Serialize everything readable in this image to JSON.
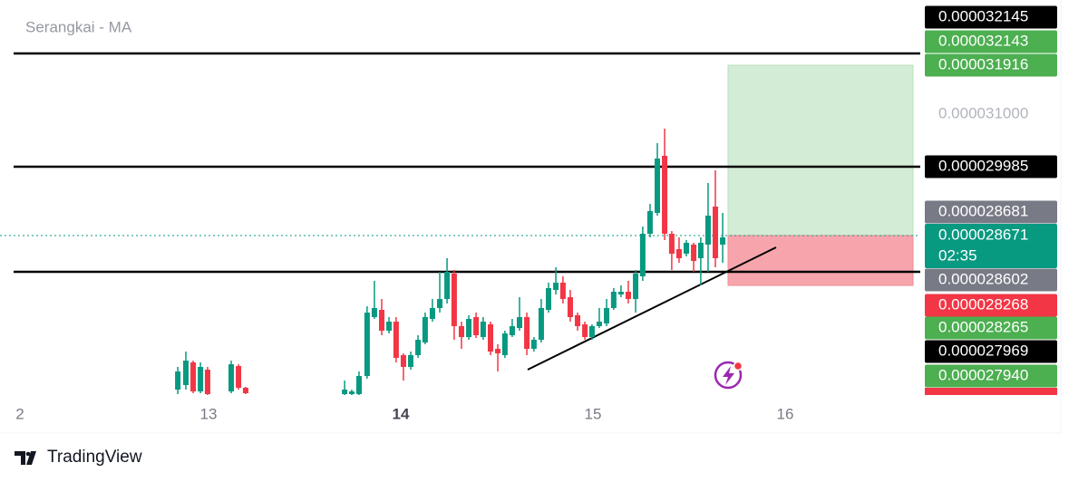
{
  "chart_data": {
    "type": "candlestick",
    "title": "Serangkai - MA",
    "brand": "TradingView",
    "up_color": "#089981",
    "down_color": "#f23645",
    "x": [
      12.84,
      12.882,
      12.92,
      12.958,
      12.995,
      13.118,
      13.156,
      13.193,
      13.708,
      13.745,
      13.783,
      13.825,
      13.863,
      13.901,
      13.939,
      13.976,
      14.014,
      14.052,
      14.09,
      14.127,
      14.165,
      14.203,
      14.241,
      14.278,
      14.316,
      14.354,
      14.392,
      14.429,
      14.467,
      14.505,
      14.542,
      14.58,
      14.618,
      14.656,
      14.693,
      14.731,
      14.769,
      14.807,
      14.844,
      14.882,
      14.92,
      14.958,
      14.995,
      15.033,
      15.071,
      15.108,
      15.146,
      15.184,
      15.222,
      15.259,
      15.297,
      15.335,
      15.373,
      15.41,
      15.448,
      15.486,
      15.524,
      15.561,
      15.599,
      15.637,
      15.675
    ],
    "open": [
      2.7042e-05,
      2.7102e-05,
      2.7402e-05,
      2.7018e-05,
      2.7306e-05,
      2.7018e-05,
      2.7354e-05,
      2.7066e-05,
      2.6982e-05,
      2.6982e-05,
      2.6982e-05,
      2.7222e-05,
      2.8002e-05,
      2.8098e-05,
      2.7822e-05,
      2.7942e-05,
      2.7498e-05,
      2.7342e-05,
      2.7498e-05,
      2.7666e-05,
      2.7978e-05,
      2.8122e-05,
      2.8242e-05,
      2.8578e-05,
      2.7882e-05,
      2.7738e-05,
      2.8002e-05,
      2.7738e-05,
      2.7906e-05,
      2.7582e-05,
      2.7498e-05,
      2.7762e-05,
      2.7858e-05,
      2.8002e-05,
      2.7582e-05,
      2.7702e-05,
      2.8098e-05,
      2.8362e-05,
      2.8458e-05,
      2.8266e-05,
      2.8026e-05,
      2.7906e-05,
      2.7738e-05,
      2.7882e-05,
      2.7918e-05,
      2.8122e-05,
      2.8302e-05,
      2.8338e-05,
      2.8242e-05,
      2.8542e-05,
      2.9106e-05,
      2.9382e-05,
      3.0138e-05,
      2.9106e-05,
      2.8902e-05,
      2.8842e-05,
      2.8962e-05,
      2.8782e-05,
      2.8962e-05,
      2.9466e-05,
      2.8962e-05
    ],
    "high": [
      2.7342e-05,
      2.7546e-05,
      2.7426e-05,
      2.7402e-05,
      2.7342e-05,
      2.7426e-05,
      2.7378e-05,
      2.7078e-05,
      2.7162e-05,
      2.7042e-05,
      2.7282e-05,
      2.8146e-05,
      2.8482e-05,
      2.8242e-05,
      2.8002e-05,
      2.8002e-05,
      2.7522e-05,
      2.7546e-05,
      2.7762e-05,
      2.8062e-05,
      2.8242e-05,
      2.8602e-05,
      2.8782e-05,
      2.8626e-05,
      2.7942e-05,
      2.8026e-05,
      2.8062e-05,
      2.8002e-05,
      2.7942e-05,
      2.7642e-05,
      2.7822e-05,
      2.7978e-05,
      2.8266e-05,
      2.8062e-05,
      2.7738e-05,
      2.8242e-05,
      2.8458e-05,
      2.8662e-05,
      2.8542e-05,
      2.8362e-05,
      2.8062e-05,
      2.7942e-05,
      2.7906e-05,
      2.8122e-05,
      2.8242e-05,
      2.8386e-05,
      2.8422e-05,
      2.8482e-05,
      2.8626e-05,
      2.9202e-05,
      2.9502e-05,
      3.0306e-05,
      3.0498e-05,
      2.9142e-05,
      2.9058e-05,
      2.9022e-05,
      2.8986e-05,
      2.9058e-05,
      2.9778e-05,
      2.9946e-05,
      2.9382e-05
    ],
    "low": [
      2.6982e-05,
      2.7042e-05,
      2.6994e-05,
      2.6994e-05,
      2.697e-05,
      2.6994e-05,
      2.7042e-05,
      2.6982e-05,
      2.697e-05,
      2.697e-05,
      2.697e-05,
      2.7186e-05,
      2.7978e-05,
      2.7762e-05,
      2.7786e-05,
      2.7402e-05,
      2.7162e-05,
      2.7306e-05,
      2.7462e-05,
      2.7642e-05,
      2.7942e-05,
      2.8062e-05,
      2.8182e-05,
      2.7702e-05,
      2.7582e-05,
      2.7702e-05,
      2.7726e-05,
      2.7702e-05,
      2.7498e-05,
      2.7282e-05,
      2.7462e-05,
      2.7738e-05,
      2.7822e-05,
      2.7498e-05,
      2.7546e-05,
      2.7666e-05,
      2.8062e-05,
      2.8302e-05,
      2.8182e-05,
      2.7942e-05,
      2.7822e-05,
      2.7702e-05,
      2.7702e-05,
      2.7858e-05,
      2.7882e-05,
      2.8098e-05,
      2.8266e-05,
      2.8182e-05,
      2.8062e-05,
      2.8482e-05,
      2.9058e-05,
      2.9346e-05,
      2.9022e-05,
      2.8626e-05,
      2.8722e-05,
      2.8806e-05,
      2.8602e-05,
      2.8422e-05,
      2.8602e-05,
      2.8662e-05,
      2.8722e-05
    ],
    "close": [
      2.7282e-05,
      2.7426e-05,
      2.7018e-05,
      2.7342e-05,
      2.6982e-05,
      2.7378e-05,
      2.7066e-05,
      2.6994e-05,
      2.7042e-05,
      2.7018e-05,
      2.7222e-05,
      2.8062e-05,
      2.8122e-05,
      2.7822e-05,
      2.7942e-05,
      2.7462e-05,
      2.7342e-05,
      2.7498e-05,
      2.7702e-05,
      2.8002e-05,
      2.8122e-05,
      2.8242e-05,
      2.8602e-05,
      2.7882e-05,
      2.7738e-05,
      2.7978e-05,
      2.7762e-05,
      2.7942e-05,
      2.7546e-05,
      2.7522e-05,
      2.7786e-05,
      2.7882e-05,
      2.8002e-05,
      2.7582e-05,
      2.7702e-05,
      2.8122e-05,
      2.8386e-05,
      2.8458e-05,
      2.8242e-05,
      2.8002e-05,
      2.7882e-05,
      2.7738e-05,
      2.7882e-05,
      2.7942e-05,
      2.8122e-05,
      2.8338e-05,
      2.8338e-05,
      2.8242e-05,
      2.8578e-05,
      2.9106e-05,
      2.9406e-05,
      3.0102e-05,
      2.9106e-05,
      2.8842e-05,
      2.8782e-05,
      2.8986e-05,
      2.8746e-05,
      2.8986e-05,
      2.9346e-05,
      2.8782e-05,
      2.9058e-05
    ],
    "xlim": [
      11.915,
      16.703
    ],
    "ylim": [
      2.6922e-05,
      3.2202e-05
    ],
    "xticks": [
      {
        "value": 12,
        "label": "2"
      },
      13,
      14,
      15,
      16
    ],
    "price_labels": [
      {
        "label": "0.000032145",
        "color": "#000000"
      },
      {
        "label": "0.000032143",
        "color": "#4caf50"
      },
      {
        "label": "0.000031916",
        "color": "#4caf50"
      },
      {
        "label": "0.000031000",
        "color": null
      },
      {
        "label": "0.000029985",
        "color": "#000000"
      },
      {
        "label": "0.000028681",
        "color": "#787b86"
      },
      {
        "label": "0.000028671",
        "color": "#089981",
        "countdown": "02:35"
      },
      {
        "label": "0.000028602",
        "color": "#787b86"
      },
      {
        "label": "0.000028268",
        "color": "#f23645"
      },
      {
        "label": "0.000028265",
        "color": "#4caf50"
      },
      {
        "label": "0.000027969",
        "color": "#000000"
      },
      {
        "label": "0.000027940",
        "color": "#4caf50"
      }
    ]
  }
}
